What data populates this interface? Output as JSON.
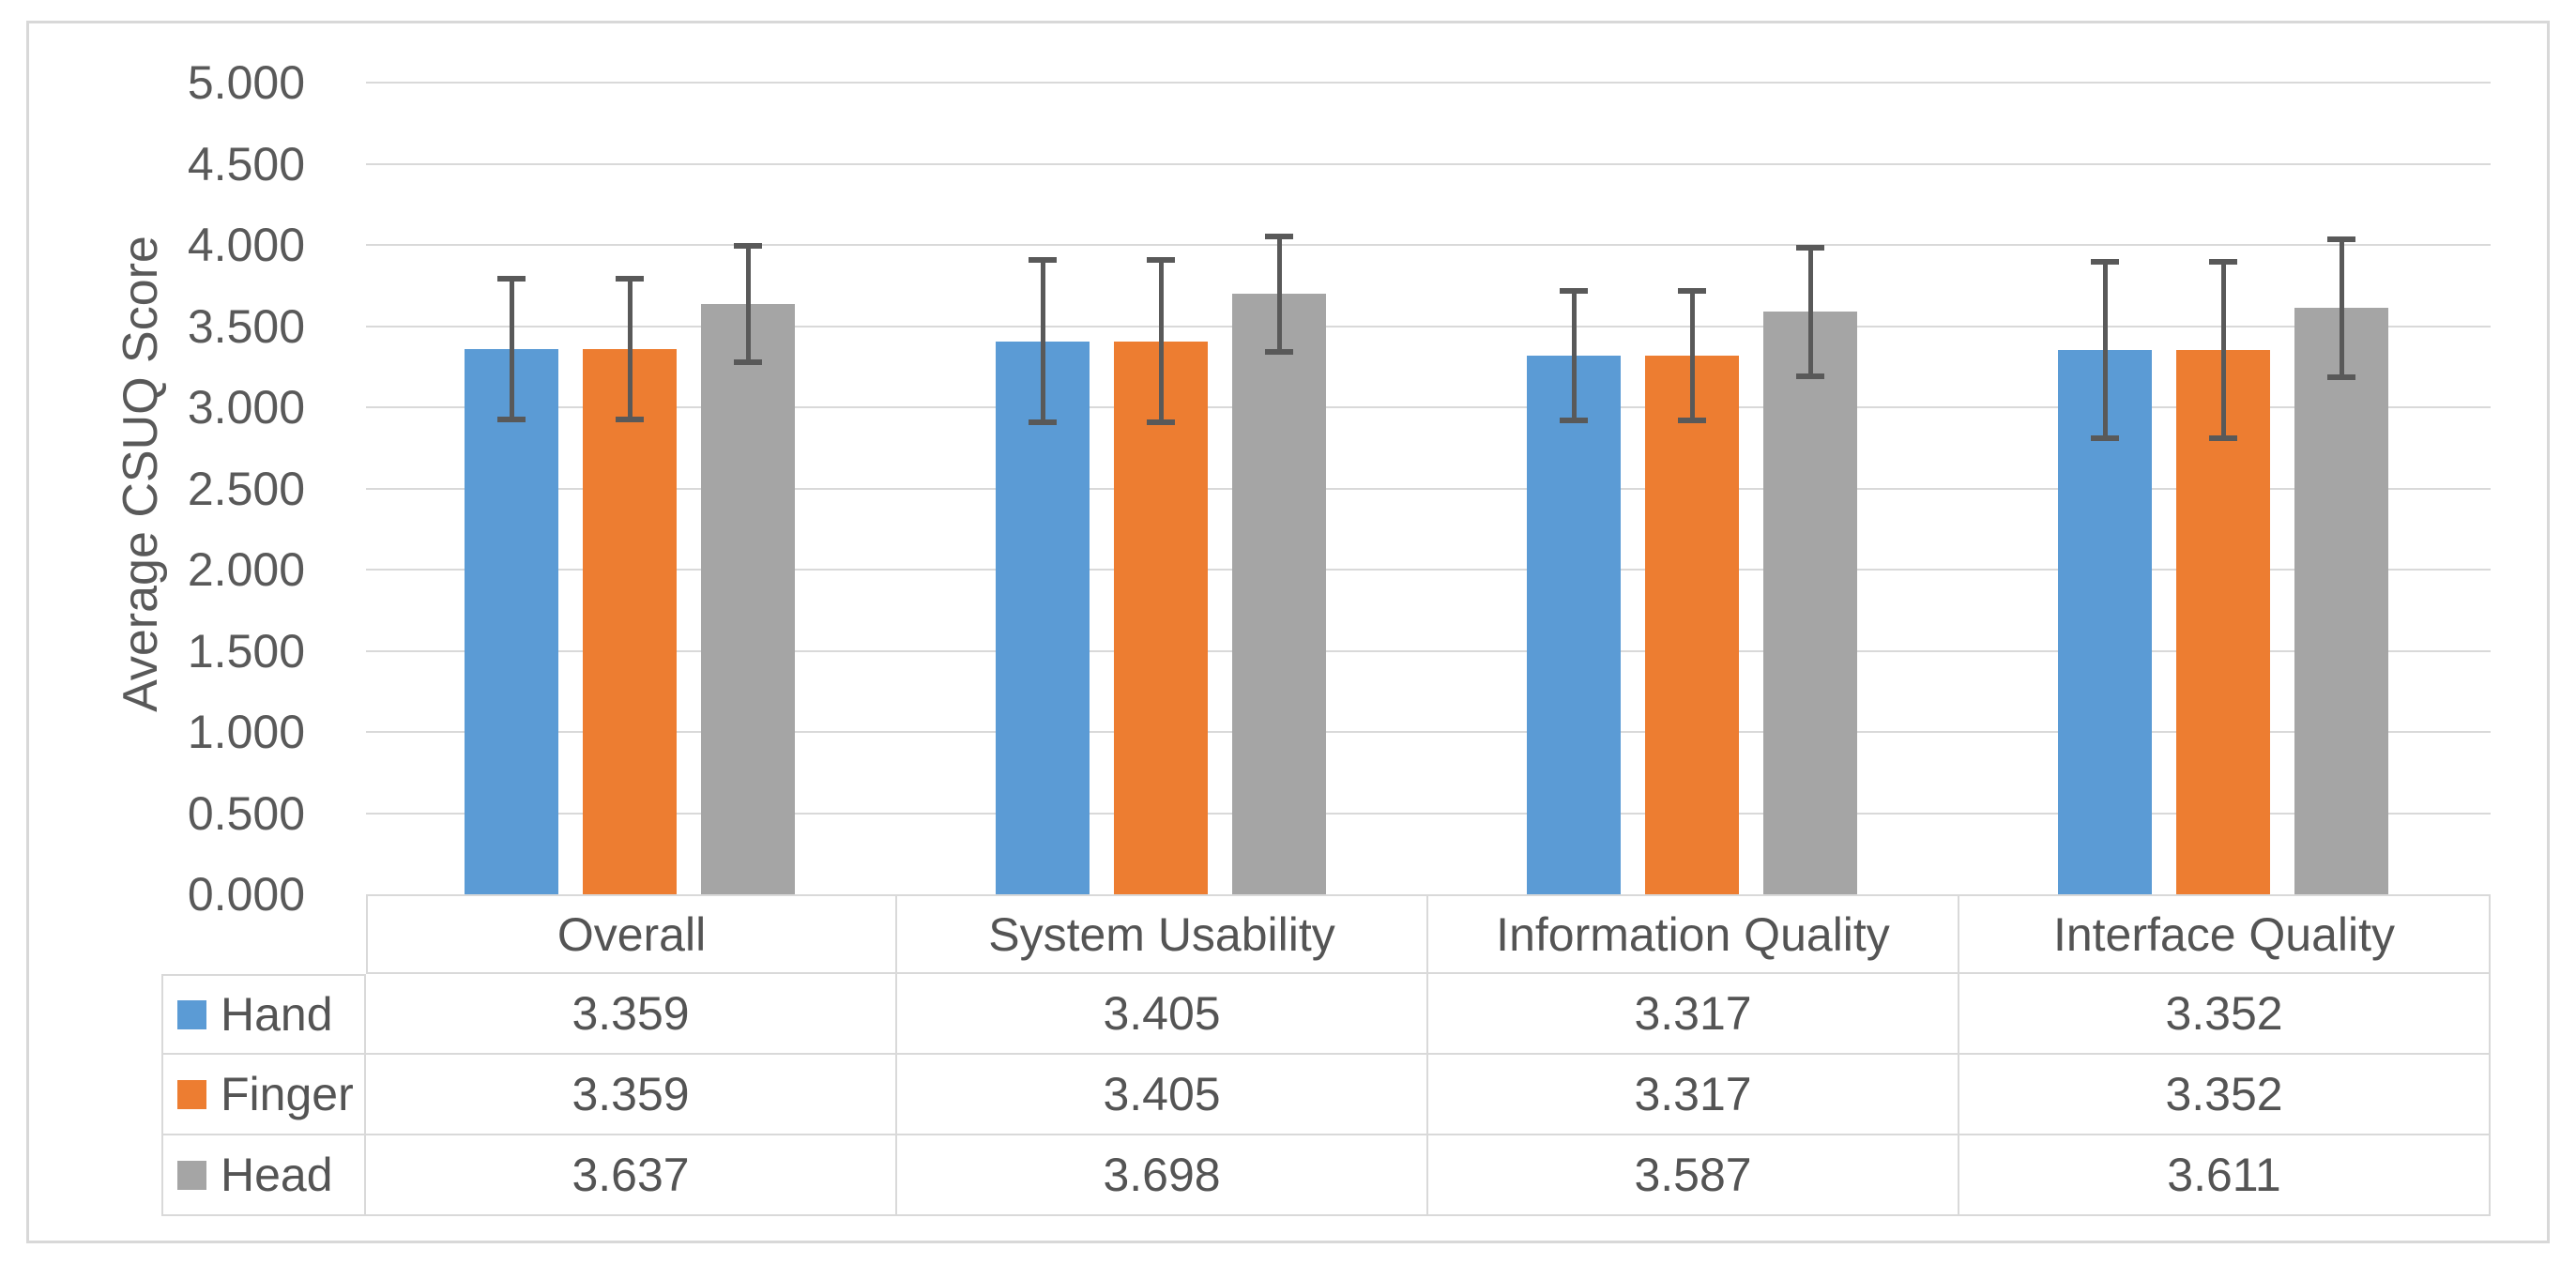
{
  "chart_data": {
    "type": "bar",
    "title": "",
    "xlabel": "",
    "ylabel": "Average CSUQ Score",
    "ylim": [
      0,
      5
    ],
    "ytick_step": 0.5,
    "yticks": [
      "5.000",
      "4.500",
      "4.000",
      "3.500",
      "3.000",
      "2.500",
      "2.000",
      "1.500",
      "1.000",
      "0.500",
      "0.000"
    ],
    "grid": true,
    "has_error_bars": true,
    "legend_position": "data-table-left-keys",
    "categories": [
      "Overall",
      "System Usability",
      "Information Quality",
      "Interface Quality"
    ],
    "series": [
      {
        "name": "Hand",
        "color": "#5B9BD5",
        "values": [
          3.359,
          3.405,
          3.317,
          3.352
        ],
        "errors": [
          0.435,
          0.5,
          0.4,
          0.545
        ]
      },
      {
        "name": "Finger",
        "color": "#ED7D31",
        "values": [
          3.359,
          3.405,
          3.317,
          3.352
        ],
        "errors": [
          0.435,
          0.5,
          0.4,
          0.545
        ]
      },
      {
        "name": "Head",
        "color": "#A5A5A5",
        "values": [
          3.637,
          3.698,
          3.587,
          3.611
        ],
        "errors": [
          0.36,
          0.355,
          0.395,
          0.425
        ]
      }
    ],
    "data_table": {
      "show": true,
      "value_decimals": 3,
      "cell_text": [
        [
          "3.359",
          "3.405",
          "3.317",
          "3.352"
        ],
        [
          "3.359",
          "3.405",
          "3.317",
          "3.352"
        ],
        [
          "3.637",
          "3.698",
          "3.587",
          "3.611"
        ]
      ]
    }
  },
  "colors": {
    "bar_blue": "#5B9BD5",
    "bar_orange": "#ED7D31",
    "bar_gray": "#A5A5A5",
    "error_bar": "#595959",
    "gridline": "#D9D9D9",
    "table_border": "#D9D9D9",
    "frame_border": "#D8D8D8",
    "text": "#595959",
    "background": "#FFFFFF"
  }
}
